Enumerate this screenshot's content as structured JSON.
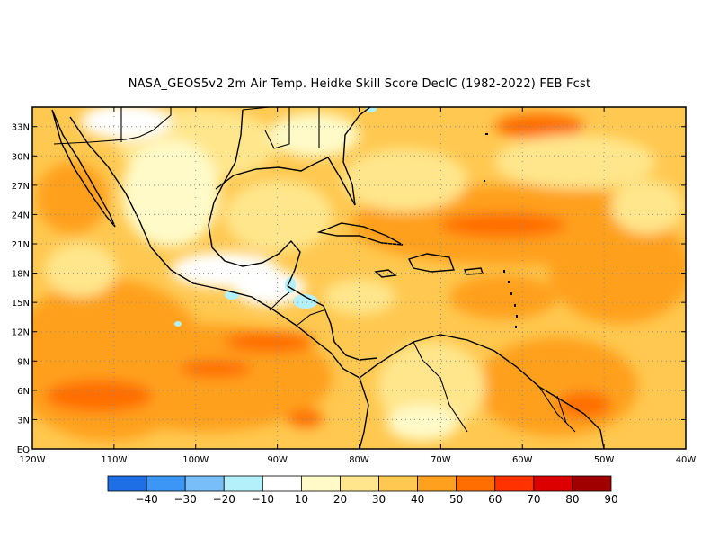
{
  "title": "NASA_GEOS5v2  2m Air Temp. Heidke Skill Score DecIC (1982-2022) FEB Fcst",
  "map": {
    "lat_labels": [
      "33N",
      "30N",
      "27N",
      "24N",
      "21N",
      "18N",
      "15N",
      "12N",
      "9N",
      "6N",
      "3N",
      "EQ"
    ],
    "lon_labels": [
      "120W",
      "110W",
      "100W",
      "90W",
      "80W",
      "70W",
      "60W",
      "50W",
      "40W"
    ],
    "lon_range": [
      -120,
      -40
    ],
    "lat_range": [
      0,
      35
    ],
    "grid": "dotted"
  },
  "colorbar": {
    "labels": [
      "-40",
      "-30",
      "-20",
      "-10",
      "10",
      "20",
      "30",
      "40",
      "50",
      "60",
      "70",
      "80",
      "90"
    ],
    "colors": [
      "#1e6ee6",
      "#3c96f5",
      "#78bef9",
      "#b4f0fa",
      "#ffffff",
      "#fffac8",
      "#ffe68c",
      "#ffc850",
      "#ffa01e",
      "#ff6e00",
      "#ff3200",
      "#dc0000",
      "#a00000"
    ]
  }
}
